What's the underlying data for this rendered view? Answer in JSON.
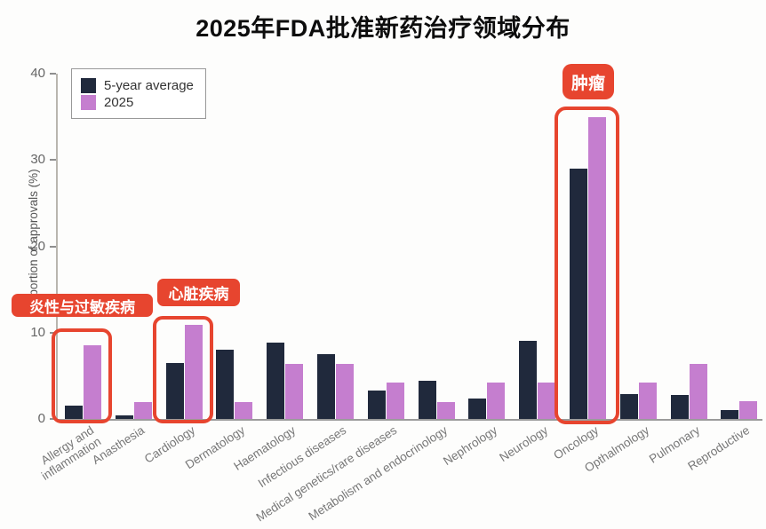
{
  "page": {
    "title": "2025年FDA批准新药治疗领域分布"
  },
  "chart_data": {
    "type": "bar",
    "title": "2025年FDA批准新药治疗领域分布",
    "xlabel": "",
    "ylabel": "Proportion of approvals (%)",
    "ylim": [
      0,
      40
    ],
    "yticks": [
      0,
      10,
      20,
      30,
      40
    ],
    "grid": false,
    "legend_position": "upper-left",
    "categories": [
      "Allergy and\ninflammation",
      "Anasthesia",
      "Cardiology",
      "Dermatology",
      "Haematology",
      "Infectious diseases",
      "Medical genetics/rare diseases",
      "Metabolism and endocrinology",
      "Nephrology",
      "Neurology",
      "Oncology",
      "Opthalmology",
      "Pulmonary",
      "Reproductive"
    ],
    "series": [
      {
        "name": "5-year average",
        "color": "#20293c",
        "values": [
          1.5,
          0.4,
          6.5,
          8.0,
          8.8,
          7.5,
          3.3,
          4.4,
          2.4,
          9.1,
          29.0,
          2.9,
          2.8,
          1.0
        ]
      },
      {
        "name": "2025",
        "color": "#c57ecf",
        "values": [
          8.5,
          2.0,
          10.9,
          2.0,
          6.4,
          6.4,
          4.2,
          2.0,
          4.2,
          4.2,
          35.0,
          4.2,
          6.4,
          2.1
        ]
      }
    ]
  },
  "annotations": {
    "accent_color": "#e7452f",
    "labels": [
      {
        "text": "炎性与过敏疾病",
        "target": "Allergy and inflammation"
      },
      {
        "text": "心脏疾病",
        "target": "Cardiology"
      },
      {
        "text": "肿瘤",
        "target": "Oncology"
      }
    ]
  }
}
